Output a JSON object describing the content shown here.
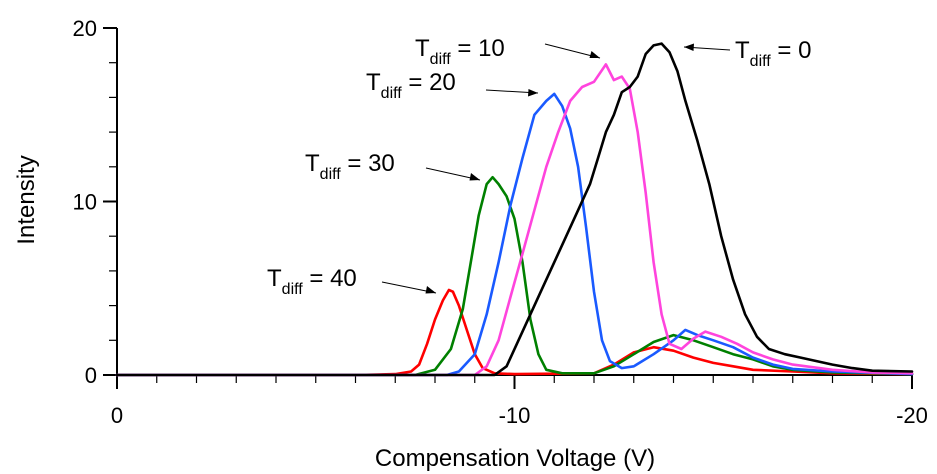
{
  "chart_data": {
    "type": "line",
    "xlabel": "Compensation Voltage (V)",
    "ylabel": "Intensity",
    "xlim": [
      0,
      -20
    ],
    "ylim": [
      0,
      20
    ],
    "x_ticks": [
      0,
      -10,
      -20
    ],
    "y_ticks": [
      0,
      10,
      20
    ],
    "x_minor_step": 1,
    "y_minor_step": 2,
    "series": [
      {
        "color": "#ff0000",
        "points": [
          [
            0,
            0
          ],
          [
            -6,
            0
          ],
          [
            -7.0,
            0.05
          ],
          [
            -7.4,
            0.2
          ],
          [
            -7.6,
            0.6
          ],
          [
            -7.8,
            1.8
          ],
          [
            -8.0,
            3.2
          ],
          [
            -8.2,
            4.3
          ],
          [
            -8.35,
            4.9
          ],
          [
            -8.45,
            4.8
          ],
          [
            -8.6,
            4.0
          ],
          [
            -8.8,
            2.6
          ],
          [
            -9.0,
            1.2
          ],
          [
            -9.2,
            0.4
          ],
          [
            -9.5,
            0.1
          ],
          [
            -10,
            0.05
          ],
          [
            -12,
            0.1
          ],
          [
            -12.5,
            0.6
          ],
          [
            -13,
            1.3
          ],
          [
            -13.5,
            1.6
          ],
          [
            -14,
            1.4
          ],
          [
            -14.5,
            1.0
          ],
          [
            -15,
            0.7
          ],
          [
            -15.5,
            0.5
          ],
          [
            -16,
            0.3
          ],
          [
            -17,
            0.2
          ],
          [
            -18,
            0.1
          ],
          [
            -20,
            0.05
          ]
        ]
      },
      {
        "color": "#008000",
        "points": [
          [
            0,
            0
          ],
          [
            -7.5,
            0
          ],
          [
            -8.0,
            0.3
          ],
          [
            -8.4,
            1.5
          ],
          [
            -8.7,
            3.8
          ],
          [
            -8.9,
            6.5
          ],
          [
            -9.1,
            9.2
          ],
          [
            -9.3,
            11.0
          ],
          [
            -9.45,
            11.4
          ],
          [
            -9.6,
            11.0
          ],
          [
            -9.8,
            10.3
          ],
          [
            -10.0,
            9.0
          ],
          [
            -10.2,
            6.5
          ],
          [
            -10.4,
            3.2
          ],
          [
            -10.6,
            1.2
          ],
          [
            -10.8,
            0.3
          ],
          [
            -11.2,
            0.1
          ],
          [
            -12,
            0.1
          ],
          [
            -12.5,
            0.5
          ],
          [
            -13,
            1.2
          ],
          [
            -13.5,
            1.9
          ],
          [
            -14,
            2.3
          ],
          [
            -14.5,
            2.0
          ],
          [
            -15,
            1.6
          ],
          [
            -15.5,
            1.2
          ],
          [
            -16,
            0.9
          ],
          [
            -16.5,
            0.5
          ],
          [
            -17,
            0.3
          ],
          [
            -18,
            0.15
          ],
          [
            -20,
            0.05
          ]
        ]
      },
      {
        "color": "#1a5aff",
        "points": [
          [
            0,
            0
          ],
          [
            -8.3,
            0
          ],
          [
            -8.6,
            0.2
          ],
          [
            -9.0,
            1.2
          ],
          [
            -9.3,
            3.5
          ],
          [
            -9.6,
            6.5
          ],
          [
            -9.9,
            9.8
          ],
          [
            -10.2,
            12.5
          ],
          [
            -10.5,
            15.0
          ],
          [
            -10.8,
            15.8
          ],
          [
            -11.0,
            16.2
          ],
          [
            -11.2,
            15.5
          ],
          [
            -11.4,
            14.2
          ],
          [
            -11.6,
            12.0
          ],
          [
            -11.8,
            8.5
          ],
          [
            -12.0,
            4.8
          ],
          [
            -12.2,
            2.0
          ],
          [
            -12.4,
            0.8
          ],
          [
            -12.7,
            0.4
          ],
          [
            -13,
            0.5
          ],
          [
            -13.5,
            1.2
          ],
          [
            -14,
            2.0
          ],
          [
            -14.3,
            2.6
          ],
          [
            -14.6,
            2.3
          ],
          [
            -15,
            2.0
          ],
          [
            -15.5,
            1.6
          ],
          [
            -16,
            1.0
          ],
          [
            -16.5,
            0.6
          ],
          [
            -17,
            0.35
          ],
          [
            -18,
            0.2
          ],
          [
            -20,
            0.05
          ]
        ]
      },
      {
        "color": "#ff44dd",
        "points": [
          [
            0,
            0
          ],
          [
            -9.0,
            0
          ],
          [
            -9.3,
            0.5
          ],
          [
            -9.6,
            2.0
          ],
          [
            -9.9,
            4.5
          ],
          [
            -10.2,
            7.0
          ],
          [
            -10.5,
            9.5
          ],
          [
            -10.8,
            12.0
          ],
          [
            -11.1,
            14.0
          ],
          [
            -11.4,
            15.8
          ],
          [
            -11.7,
            16.6
          ],
          [
            -12.0,
            16.9
          ],
          [
            -12.3,
            17.9
          ],
          [
            -12.5,
            17.0
          ],
          [
            -12.7,
            17.2
          ],
          [
            -12.9,
            16.5
          ],
          [
            -13.1,
            14.0
          ],
          [
            -13.3,
            10.5
          ],
          [
            -13.5,
            6.5
          ],
          [
            -13.7,
            3.5
          ],
          [
            -13.9,
            1.8
          ],
          [
            -14.2,
            1.5
          ],
          [
            -14.5,
            2.1
          ],
          [
            -14.8,
            2.5
          ],
          [
            -15.2,
            2.2
          ],
          [
            -15.6,
            1.8
          ],
          [
            -16,
            1.3
          ],
          [
            -16.5,
            0.9
          ],
          [
            -17,
            0.6
          ],
          [
            -18,
            0.3
          ],
          [
            -19,
            0.15
          ],
          [
            -20,
            0.1
          ]
        ]
      },
      {
        "color": "#000000",
        "points": [
          [
            0,
            0
          ],
          [
            -9.5,
            0
          ],
          [
            -9.8,
            0.5
          ],
          [
            -10.1,
            2.0
          ],
          [
            -10.4,
            3.5
          ],
          [
            -10.7,
            5.0
          ],
          [
            -11.0,
            6.5
          ],
          [
            -11.3,
            8.0
          ],
          [
            -11.6,
            9.5
          ],
          [
            -11.9,
            11.0
          ],
          [
            -12.1,
            12.5
          ],
          [
            -12.3,
            14.0
          ],
          [
            -12.5,
            15.0
          ],
          [
            -12.7,
            16.3
          ],
          [
            -12.9,
            16.6
          ],
          [
            -13.1,
            17.2
          ],
          [
            -13.3,
            18.5
          ],
          [
            -13.5,
            19.0
          ],
          [
            -13.7,
            19.1
          ],
          [
            -13.9,
            18.6
          ],
          [
            -14.1,
            17.5
          ],
          [
            -14.3,
            15.8
          ],
          [
            -14.6,
            13.5
          ],
          [
            -14.9,
            11.0
          ],
          [
            -15.2,
            8.0
          ],
          [
            -15.5,
            5.5
          ],
          [
            -15.8,
            3.5
          ],
          [
            -16.1,
            2.2
          ],
          [
            -16.4,
            1.5
          ],
          [
            -16.8,
            1.2
          ],
          [
            -17.2,
            1.0
          ],
          [
            -17.6,
            0.8
          ],
          [
            -18.0,
            0.6
          ],
          [
            -18.5,
            0.4
          ],
          [
            -19,
            0.25
          ],
          [
            -20,
            0.2
          ]
        ]
      }
    ],
    "annotations": [
      {
        "text": "T",
        "subscript": "diff",
        "suffix": " = 0"
      },
      {
        "text": "T",
        "subscript": "diff",
        "suffix": " = 10"
      },
      {
        "text": "T",
        "subscript": "diff",
        "suffix": " = 20"
      },
      {
        "text": "T",
        "subscript": "diff",
        "suffix": " = 30"
      },
      {
        "text": "T",
        "subscript": "diff",
        "suffix": " = 40"
      }
    ]
  }
}
